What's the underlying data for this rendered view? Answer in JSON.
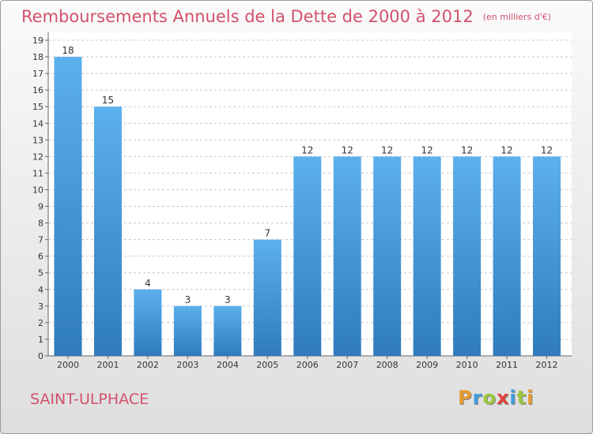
{
  "chart_data": {
    "type": "bar",
    "title": "Remboursements Annuels de la Dette de 2000 à 2012",
    "unit_label": "(en milliers d'€)",
    "categories": [
      "2000",
      "2001",
      "2002",
      "2003",
      "2004",
      "2005",
      "2006",
      "2007",
      "2008",
      "2009",
      "2010",
      "2011",
      "2012"
    ],
    "values": [
      18,
      15,
      4,
      3,
      3,
      7,
      12,
      12,
      12,
      12,
      12,
      12,
      12
    ],
    "data_labels": [
      "18",
      "15",
      "4",
      "3",
      "3",
      "7",
      "12",
      "12",
      "12",
      "12",
      "12",
      "12",
      "12"
    ],
    "ylim": [
      0,
      19
    ],
    "yticks": [
      "0",
      "1",
      "2",
      "3",
      "4",
      "5",
      "6",
      "7",
      "8",
      "9",
      "10",
      "11",
      "12",
      "13",
      "14",
      "15",
      "16",
      "17",
      "18",
      "19"
    ],
    "grid": true,
    "bar_color": "#4a9fe0"
  },
  "footer": {
    "location": "SAINT-ULPHACE",
    "brand_letters": [
      {
        "ch": "P",
        "color": "#e89a2e"
      },
      {
        "ch": "r",
        "color": "#3f9de0"
      },
      {
        "ch": "o",
        "color": "#9ac83c"
      },
      {
        "ch": "x",
        "color": "#e2433e"
      },
      {
        "ch": "i",
        "color": "#3f9de0"
      },
      {
        "ch": "t",
        "color": "#9ac83c"
      },
      {
        "ch": "i",
        "color": "#e89a2e"
      }
    ]
  }
}
